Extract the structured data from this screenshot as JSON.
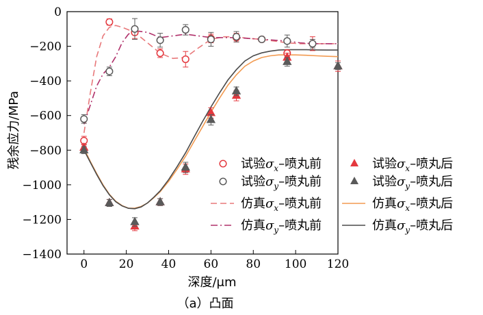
{
  "chart_data": {
    "type": "scatter",
    "caption": "（a）凸面",
    "xlabel": "深度/μm",
    "ylabel": "残余应力/MPa",
    "xlim": [
      -8,
      120
    ],
    "ylim": [
      -1400,
      0
    ],
    "xticks": [
      0,
      20,
      40,
      60,
      80,
      100,
      120
    ],
    "yticks": [
      0,
      -200,
      -400,
      -600,
      -800,
      -1000,
      -1200,
      -1400
    ],
    "grid": false,
    "legend_position": "center-right",
    "colors": {
      "red": "#e4383e",
      "gray": "#5a5a5a",
      "pink_dash": "#e8787a",
      "purple_dash": "#b0306a",
      "orange_line": "#f29a50",
      "dark_line": "#4a4a4a"
    },
    "series": [
      {
        "name_pre": "试验",
        "name_sym": "σ",
        "name_sub": "x",
        "name_post": "–喷丸前",
        "kind": "marker",
        "marker": "circle-open",
        "color": "#e4383e",
        "x": [
          0,
          12,
          24,
          36,
          48,
          60,
          72,
          84,
          96,
          108
        ],
        "y": [
          -745,
          -60,
          -120,
          -240,
          -275,
          -155,
          -150,
          -160,
          -240,
          -185
        ],
        "err": [
          25,
          18,
          35,
          25,
          45,
          25,
          25,
          10,
          20,
          40
        ]
      },
      {
        "name_pre": "试验",
        "name_sym": "σ",
        "name_sub": "y",
        "name_post": "–喷丸前",
        "kind": "marker",
        "marker": "circle-open",
        "color": "#5a5a5a",
        "x": [
          0,
          12,
          24,
          36,
          48,
          60,
          72,
          84,
          96,
          108
        ],
        "y": [
          -620,
          -345,
          -100,
          -165,
          -105,
          -160,
          -145,
          -160,
          -170,
          -185
        ],
        "err": [
          25,
          25,
          60,
          40,
          30,
          40,
          30,
          10,
          35,
          25
        ]
      },
      {
        "name_pre": "仿真",
        "name_sym": "σ",
        "name_sub": "x",
        "name_post": "–喷丸前",
        "kind": "line",
        "dash": "9,5",
        "color": "#e8787a",
        "x": [
          0,
          3,
          6,
          9,
          12,
          15,
          18,
          21,
          24,
          30,
          36,
          42,
          48,
          54,
          60,
          66,
          72,
          78,
          84,
          90,
          96,
          102,
          108,
          114,
          120
        ],
        "y": [
          -700,
          -470,
          -260,
          -140,
          -90,
          -80,
          -90,
          -105,
          -120,
          -180,
          -240,
          -270,
          -265,
          -210,
          -160,
          -145,
          -145,
          -155,
          -160,
          -170,
          -180,
          -185,
          -185,
          -185,
          -185
        ]
      },
      {
        "name_pre": "仿真",
        "name_sym": "σ",
        "name_sub": "y",
        "name_post": "–喷丸前",
        "kind": "line",
        "dash": "10,4,2,4",
        "color": "#b0306a",
        "x": [
          0,
          3,
          6,
          9,
          12,
          15,
          18,
          21,
          24,
          30,
          36,
          42,
          48,
          54,
          60,
          66,
          72,
          78,
          84,
          90,
          96,
          102,
          108,
          114,
          120
        ],
        "y": [
          -650,
          -540,
          -430,
          -360,
          -320,
          -260,
          -180,
          -130,
          -110,
          -120,
          -150,
          -140,
          -130,
          -140,
          -150,
          -150,
          -150,
          -155,
          -160,
          -165,
          -170,
          -180,
          -185,
          -185,
          -185
        ]
      },
      {
        "name_pre": "试验",
        "name_sym": "σ",
        "name_sub": "x",
        "name_post": "–喷丸后",
        "kind": "marker",
        "marker": "triangle-filled",
        "color": "#e4383e",
        "x": [
          0,
          12,
          24,
          36,
          48,
          60,
          72,
          96,
          120
        ],
        "y": [
          -785,
          -1105,
          -1240,
          -1100,
          -910,
          -585,
          -485,
          -265,
          -315
        ],
        "err": [
          20,
          20,
          25,
          20,
          30,
          30,
          30,
          25,
          30
        ]
      },
      {
        "name_pre": "试验",
        "name_sym": "σ",
        "name_sub": "y",
        "name_post": "–喷丸后",
        "kind": "marker",
        "marker": "triangle-filled",
        "color": "#5a5a5a",
        "x": [
          0,
          12,
          24,
          36,
          48,
          60,
          72,
          96,
          120
        ],
        "y": [
          -800,
          -1105,
          -1215,
          -1100,
          -900,
          -625,
          -460,
          -290,
          -315
        ],
        "err": [
          20,
          20,
          25,
          20,
          30,
          30,
          25,
          25,
          20
        ]
      },
      {
        "name_pre": "仿真",
        "name_sym": "σ",
        "name_sub": "x",
        "name_post": "–喷丸后",
        "kind": "line",
        "dash": "",
        "color": "#f29a50",
        "x": [
          0,
          3,
          6,
          9,
          12,
          15,
          18,
          21,
          24,
          27,
          30,
          33,
          36,
          40,
          44,
          48,
          52,
          56,
          60,
          64,
          68,
          72,
          76,
          80,
          84,
          88,
          92,
          96,
          100,
          105,
          110,
          115,
          120
        ],
        "y": [
          -790,
          -865,
          -935,
          -1000,
          -1055,
          -1095,
          -1120,
          -1135,
          -1135,
          -1125,
          -1105,
          -1075,
          -1040,
          -980,
          -910,
          -835,
          -750,
          -665,
          -580,
          -500,
          -425,
          -365,
          -315,
          -285,
          -265,
          -255,
          -250,
          -250,
          -250,
          -252,
          -255,
          -258,
          -260
        ]
      },
      {
        "name_pre": "仿真",
        "name_sym": "σ",
        "name_sub": "y",
        "name_post": "–喷丸后",
        "kind": "line",
        "dash": "",
        "color": "#4a4a4a",
        "x": [
          0,
          3,
          6,
          9,
          12,
          15,
          18,
          21,
          24,
          27,
          30,
          33,
          36,
          40,
          44,
          48,
          52,
          56,
          60,
          64,
          68,
          72,
          76,
          80,
          84,
          88,
          92,
          96,
          100,
          105,
          110,
          115,
          120
        ],
        "y": [
          -800,
          -870,
          -940,
          -1005,
          -1058,
          -1098,
          -1122,
          -1136,
          -1138,
          -1128,
          -1105,
          -1072,
          -1035,
          -970,
          -895,
          -815,
          -725,
          -635,
          -550,
          -470,
          -395,
          -335,
          -285,
          -255,
          -238,
          -228,
          -222,
          -220,
          -220,
          -220,
          -221,
          -222,
          -222
        ]
      }
    ]
  }
}
